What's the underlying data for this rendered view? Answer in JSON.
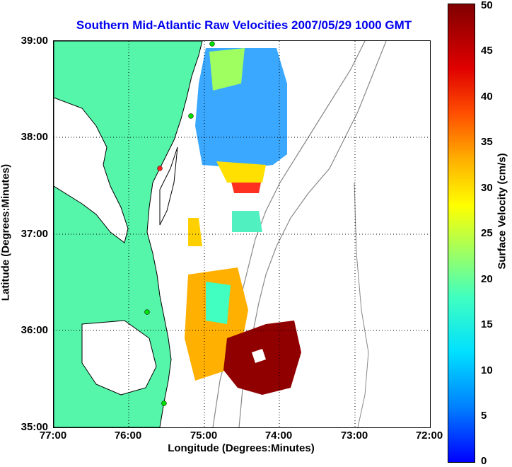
{
  "title": "Southern Mid-Atlantic Raw Velocities 2007/05/29 1000 GMT",
  "xlabel": "Longitude (Degrees:Minutes)",
  "ylabel": "Latitude (Degrees:Minutes)",
  "colorbar_label": "Surface Velocity (cm/s)",
  "xticks": [
    "77:00",
    "76:00",
    "75:00",
    "74:00",
    "73:00",
    "72:00"
  ],
  "yticks": [
    "39:00",
    "38:00",
    "37:00",
    "36:00",
    "35:00"
  ],
  "cbar_ticks": [
    "50",
    "45",
    "40",
    "35",
    "30",
    "25",
    "20",
    "15",
    "10",
    "5",
    "0"
  ],
  "colors": {
    "land": "#55f5aa",
    "title": "#0000ee",
    "stations": "#00dd00",
    "contour": "#888888"
  },
  "chart_data": {
    "type": "heatmap",
    "xlim": [
      -77,
      -72
    ],
    "ylim": [
      35,
      39
    ],
    "clim": [
      0,
      50
    ],
    "grid": true,
    "colormap": "jet",
    "colorbar_position": "right"
  }
}
